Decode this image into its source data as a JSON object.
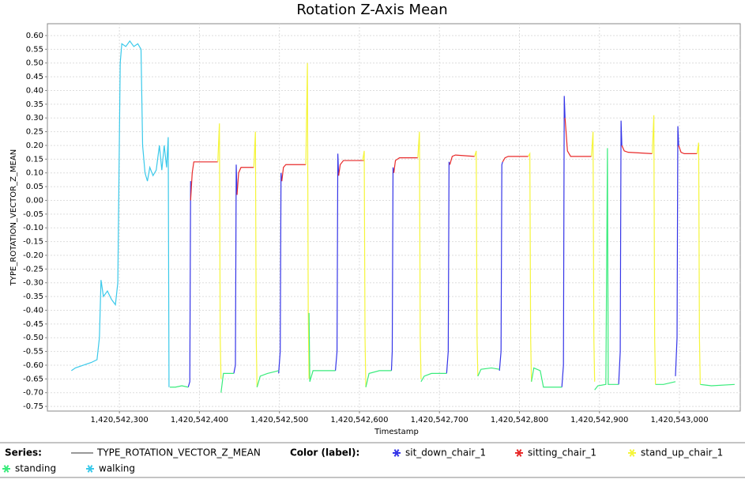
{
  "chart_data": {
    "type": "line",
    "title": "Rotation Z-Axis Mean",
    "x_label": "Timestamp",
    "y_label": "TYPE_ROTATION_VECTOR_Z_MEAN",
    "series_legend_title": "Series:",
    "series_name": "TYPE_ROTATION_VECTOR_Z_MEAN",
    "series_color": "#999999",
    "color_legend_title": "Color (label):",
    "grid": true,
    "xlim": [
      1420542210,
      1420543076
    ],
    "ylim": [
      -0.767,
      0.643
    ],
    "xticks": [
      {
        "value": 1420542300,
        "label": "1,420,542,300"
      },
      {
        "value": 1420542400,
        "label": "1,420,542,400"
      },
      {
        "value": 1420542500,
        "label": "1,420,542,500"
      },
      {
        "value": 1420542600,
        "label": "1,420,542,600"
      },
      {
        "value": 1420542700,
        "label": "1,420,542,700"
      },
      {
        "value": 1420542800,
        "label": "1,420,542,800"
      },
      {
        "value": 1420542900,
        "label": "1,420,542,900"
      },
      {
        "value": 1420543000,
        "label": "1,420,543,000"
      }
    ],
    "yticks": [
      {
        "value": 0.6,
        "label": "0.60"
      },
      {
        "value": 0.55,
        "label": "0.55"
      },
      {
        "value": 0.5,
        "label": "0.50"
      },
      {
        "value": 0.45,
        "label": "0.45"
      },
      {
        "value": 0.4,
        "label": "0.40"
      },
      {
        "value": 0.35,
        "label": "0.35"
      },
      {
        "value": 0.3,
        "label": "0.30"
      },
      {
        "value": 0.25,
        "label": "0.25"
      },
      {
        "value": 0.2,
        "label": "0.20"
      },
      {
        "value": 0.15,
        "label": "0.15"
      },
      {
        "value": 0.1,
        "label": "0.10"
      },
      {
        "value": 0.05,
        "label": "0.05"
      },
      {
        "value": 0,
        "label": "0.00"
      },
      {
        "value": -0.05,
        "label": "-0.05"
      },
      {
        "value": -0.1,
        "label": "-0.10"
      },
      {
        "value": -0.15,
        "label": "-0.15"
      },
      {
        "value": -0.2,
        "label": "-0.20"
      },
      {
        "value": -0.25,
        "label": "-0.25"
      },
      {
        "value": -0.3,
        "label": "-0.30"
      },
      {
        "value": -0.35,
        "label": "-0.35"
      },
      {
        "value": -0.4,
        "label": "-0.40"
      },
      {
        "value": -0.45,
        "label": "-0.45"
      },
      {
        "value": -0.5,
        "label": "-0.50"
      },
      {
        "value": -0.55,
        "label": "-0.55"
      },
      {
        "value": -0.6,
        "label": "-0.60"
      },
      {
        "value": -0.65,
        "label": "-0.65"
      },
      {
        "value": -0.7,
        "label": "-0.70"
      },
      {
        "value": -0.75,
        "label": "-0.75"
      }
    ],
    "series": [
      {
        "name": "sit_down_chair_1",
        "color": "#3535e8",
        "x": [
          1420542386,
          1420542388,
          1420542389,
          null,
          1420542443,
          1420542445,
          1420542446,
          1420542447,
          null,
          1420542499,
          1420542501,
          1420542502,
          1420542503,
          null,
          1420542570,
          1420542572,
          1420542573,
          1420542574,
          null,
          1420542640,
          1420542641,
          1420542642,
          1420542643,
          null,
          1420542709,
          1420542711,
          1420542712,
          1420542713,
          null,
          1420542775,
          1420542777,
          1420542778,
          1420542779,
          null,
          1420542853,
          1420542855,
          1420542856,
          1420542857,
          null,
          1420542924,
          1420542926,
          1420542927,
          1420542928,
          null,
          1420542995,
          1420542997,
          1420542998,
          1420542999
        ],
        "values": [
          -0.68,
          -0.66,
          0.07,
          null,
          -0.63,
          -0.6,
          0.13,
          0.02,
          null,
          -0.63,
          -0.55,
          0.1,
          0.07,
          null,
          -0.62,
          -0.55,
          0.17,
          0.09,
          null,
          -0.62,
          -0.55,
          0.12,
          0.1,
          null,
          -0.63,
          -0.55,
          0.14,
          0.13,
          null,
          -0.62,
          -0.55,
          0.13,
          0.14,
          null,
          -0.68,
          -0.6,
          0.38,
          0.3,
          null,
          -0.67,
          -0.55,
          0.29,
          0.2,
          null,
          -0.64,
          -0.5,
          0.27,
          0.2
        ]
      },
      {
        "name": "sitting_chair_1",
        "color": "#e82a2a",
        "x": [
          1420542389,
          1420542391,
          1420542393,
          1420542423,
          null,
          1420542447,
          1420542449,
          1420542452,
          1420542468,
          null,
          1420542503,
          1420542505,
          1420542508,
          1420542533,
          null,
          1420542574,
          1420542576,
          1420542580,
          1420542606,
          null,
          1420542643,
          1420542645,
          1420542650,
          1420542673,
          null,
          1420542713,
          1420542716,
          1420542720,
          1420542744,
          null,
          1420542779,
          1420542782,
          1420542786,
          1420542811,
          null,
          1420542857,
          1420542860,
          1420542864,
          1420542890,
          null,
          1420542928,
          1420542931,
          1420542936,
          1420542966,
          null,
          1420542999,
          1420543002,
          1420543006,
          1420543022
        ],
        "values": [
          0.0,
          0.1,
          0.14,
          0.14,
          null,
          0.02,
          0.1,
          0.12,
          0.12,
          null,
          0.07,
          0.12,
          0.13,
          0.13,
          null,
          0.09,
          0.13,
          0.145,
          0.145,
          null,
          0.1,
          0.145,
          0.155,
          0.155,
          null,
          0.13,
          0.16,
          0.165,
          0.16,
          null,
          0.14,
          0.155,
          0.16,
          0.16,
          null,
          0.3,
          0.18,
          0.16,
          0.16,
          null,
          0.2,
          0.18,
          0.175,
          0.17,
          null,
          0.2,
          0.175,
          0.17,
          0.17
        ]
      },
      {
        "name": "stand_up_chair_1",
        "color": "#f5f53a",
        "x": [
          1420542423,
          1420542425,
          1420542426,
          1420542427,
          null,
          1420542468,
          1420542470,
          1420542471,
          1420542472,
          null,
          1420542533,
          1420542535,
          1420542536,
          1420542537,
          null,
          1420542604,
          1420542606,
          1420542607,
          1420542608,
          null,
          1420542673,
          1420542675,
          1420542676,
          1420542677,
          null,
          1420542744,
          1420542746,
          1420542747,
          1420542748,
          null,
          1420542811,
          1420542813,
          1420542814,
          1420542815,
          null,
          1420542890,
          1420542892,
          1420542893,
          1420542894,
          null,
          1420542966,
          1420542968,
          1420542969,
          1420542970,
          null,
          1420543022,
          1420543024,
          1420543025,
          1420543026
        ],
        "values": [
          0.14,
          0.28,
          -0.5,
          -0.65,
          null,
          0.12,
          0.25,
          -0.5,
          -0.68,
          null,
          0.13,
          0.5,
          -0.4,
          -0.65,
          null,
          0.145,
          0.18,
          -0.5,
          -0.68,
          null,
          0.155,
          0.25,
          -0.5,
          -0.65,
          null,
          0.16,
          0.18,
          -0.5,
          -0.64,
          null,
          0.16,
          0.17,
          -0.5,
          -0.66,
          null,
          0.16,
          0.25,
          -0.5,
          -0.66,
          null,
          0.17,
          0.31,
          -0.5,
          -0.67,
          null,
          0.17,
          0.21,
          -0.5,
          -0.67
        ]
      },
      {
        "name": "standing",
        "color": "#3aec7c",
        "x": [
          1420542363,
          1420542370,
          1420542378,
          1420542386,
          null,
          1420542427,
          1420542430,
          1420542436,
          1420542443,
          null,
          1420542472,
          1420542476,
          1420542485,
          1420542499,
          null,
          1420542537,
          1420542538,
          1420542542,
          1420542555,
          1420542570,
          null,
          1420542608,
          1420542612,
          1420542625,
          1420542640,
          null,
          1420542677,
          1420542681,
          1420542690,
          1420542709,
          null,
          1420542748,
          1420542752,
          1420542765,
          1420542775,
          null,
          1420542815,
          1420542818,
          1420542826,
          1420542830,
          1420542853,
          null,
          1420542894,
          1420542898,
          1420542908,
          1420542910,
          1420542911,
          1420542924,
          null,
          1420542970,
          1420542980,
          1420542995,
          null,
          1420543026,
          1420543040,
          1420543069
        ],
        "values": [
          -0.68,
          -0.68,
          -0.675,
          -0.68,
          null,
          -0.7,
          -0.63,
          -0.63,
          -0.63,
          null,
          -0.68,
          -0.64,
          -0.63,
          -0.62,
          null,
          -0.41,
          -0.66,
          -0.62,
          -0.62,
          -0.62,
          null,
          -0.68,
          -0.63,
          -0.62,
          -0.62,
          null,
          -0.66,
          -0.64,
          -0.63,
          -0.63,
          null,
          -0.64,
          -0.615,
          -0.61,
          -0.615,
          null,
          -0.66,
          -0.61,
          -0.62,
          -0.68,
          -0.68,
          null,
          -0.69,
          -0.675,
          -0.67,
          0.19,
          -0.67,
          -0.67,
          null,
          -0.67,
          -0.67,
          -0.66,
          null,
          -0.67,
          -0.675,
          -0.67
        ]
      },
      {
        "name": "walking",
        "color": "#3ac9ea",
        "x": [
          1420542240,
          1420542245,
          1420542255,
          1420542265,
          1420542272,
          1420542275,
          1420542277,
          1420542280,
          1420542285,
          1420542290,
          1420542295,
          1420542298,
          1420542301,
          1420542303,
          1420542308,
          1420542313,
          1420542318,
          1420542323,
          1420542327,
          1420542329,
          1420542332,
          1420542335,
          1420542338,
          1420542342,
          1420542346,
          1420542350,
          1420542353,
          1420542356,
          1420542359,
          1420542361,
          1420542362
        ],
        "values": [
          -0.62,
          -0.61,
          -0.6,
          -0.59,
          -0.58,
          -0.5,
          -0.29,
          -0.35,
          -0.33,
          -0.36,
          -0.38,
          -0.3,
          0.5,
          0.57,
          0.56,
          0.58,
          0.56,
          0.57,
          0.55,
          0.2,
          0.1,
          0.07,
          0.12,
          0.09,
          0.11,
          0.2,
          0.11,
          0.2,
          0.12,
          0.23,
          -0.68
        ]
      }
    ]
  }
}
